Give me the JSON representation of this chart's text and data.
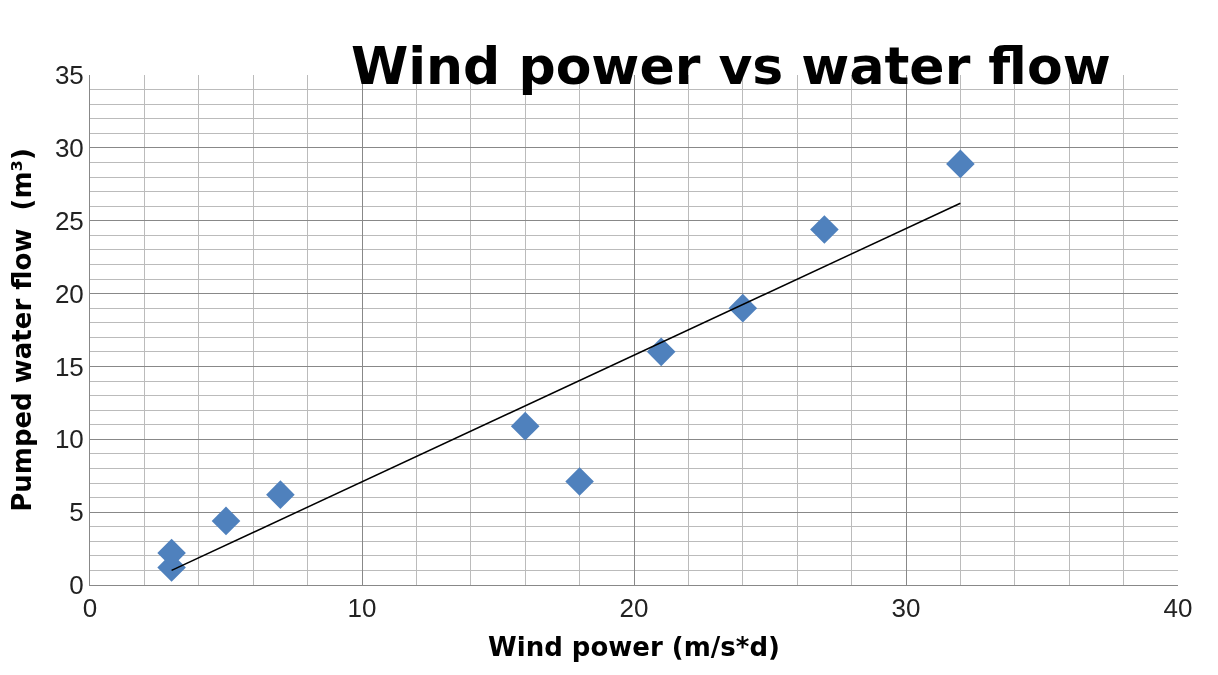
{
  "chart_data": {
    "type": "scatter",
    "title": "Wind power vs water flow",
    "xlabel": "Wind power (m/s*d)",
    "ylabel": "Pumped water flow  (m³)",
    "xlim": [
      0,
      40
    ],
    "xticks": [
      0,
      10,
      20,
      30,
      40
    ],
    "ylim": [
      0,
      35
    ],
    "yticks": [
      0,
      5,
      10,
      15,
      20,
      25,
      30,
      35
    ],
    "grid": true,
    "marker": "diamond",
    "series": [
      {
        "color": "#4f81bd",
        "x": [
          3,
          3,
          5,
          7,
          16,
          18,
          21,
          24,
          27,
          32
        ],
        "values": [
          1.2,
          2.2,
          4.4,
          6.2,
          10.9,
          7.1,
          16.0,
          19.0,
          24.4,
          28.9
        ]
      },
      {
        "type": "line",
        "marker": "none",
        "color": "#000000",
        "x": [
          3,
          32
        ],
        "values": [
          1.0,
          26.2
        ]
      }
    ]
  }
}
